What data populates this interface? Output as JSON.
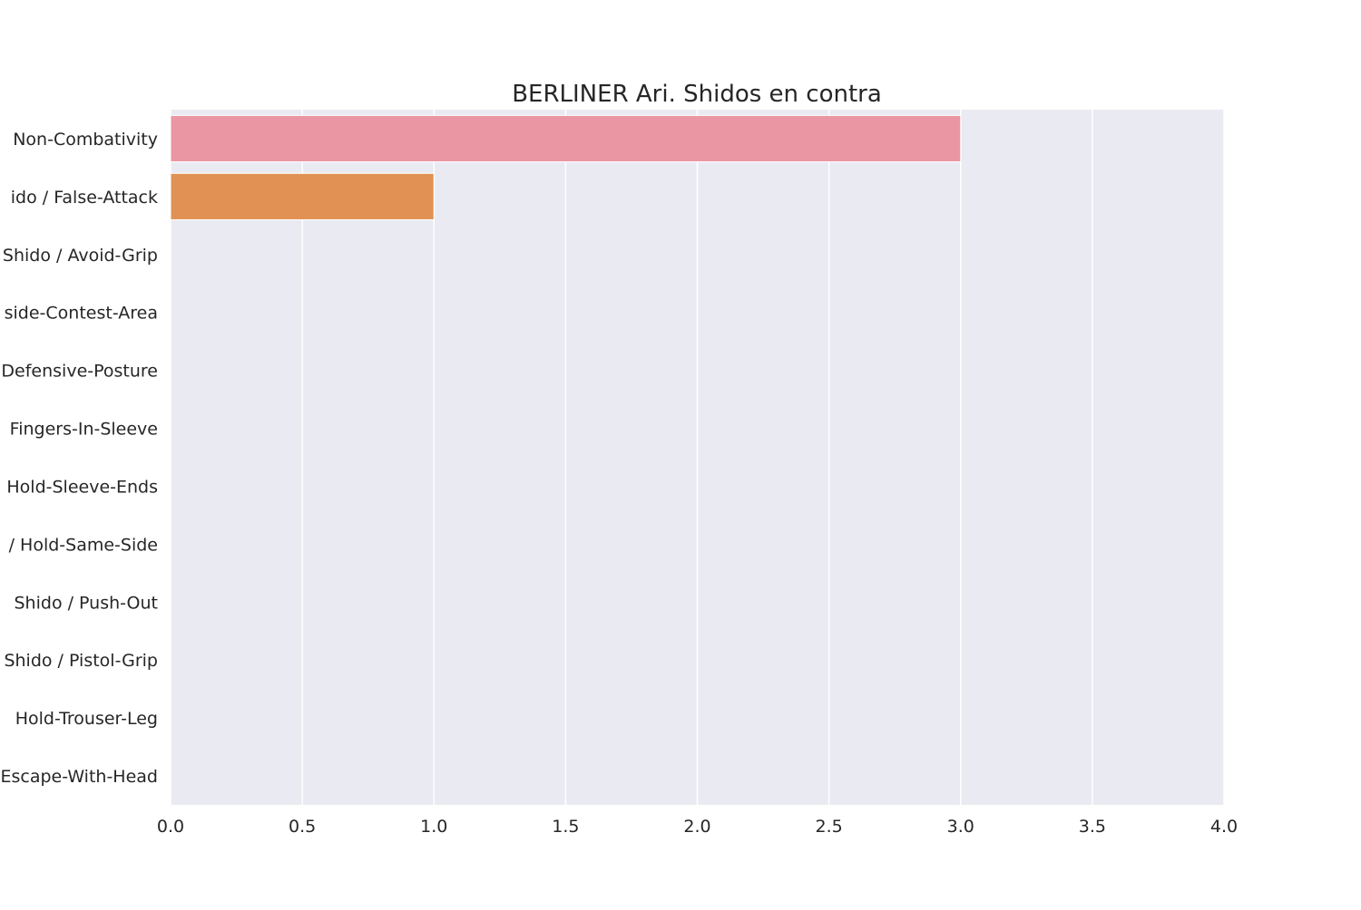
{
  "chart_data": {
    "type": "bar",
    "orientation": "horizontal",
    "title": "BERLINER Ari. Shidos en contra",
    "xlabel": "",
    "ylabel": "",
    "xlim": [
      0,
      4
    ],
    "x_ticks": [
      "0.0",
      "0.5",
      "1.0",
      "1.5",
      "2.0",
      "2.5",
      "3.0",
      "3.5",
      "4.0"
    ],
    "x_tick_values": [
      0,
      0.5,
      1,
      1.5,
      2,
      2.5,
      3,
      3.5,
      4
    ],
    "grid": true,
    "categories": [
      "Non-Combativity",
      "ido / False-Attack",
      "Shido / Avoid-Grip",
      "side-Contest-Area",
      "Defensive-Posture",
      "Fingers-In-Sleeve",
      "Hold-Sleeve-Ends",
      "/ Hold-Same-Side",
      "Shido / Push-Out",
      "Shido / Pistol-Grip",
      "Hold-Trouser-Leg",
      "Escape-With-Head"
    ],
    "values": [
      3,
      1,
      0,
      0,
      0,
      0,
      0,
      0,
      0,
      0,
      0,
      0
    ],
    "colors": [
      "#ea96a3",
      "#e19153",
      "#c6a44a",
      "#a5ab49",
      "#6fb049",
      "#52b07f",
      "#54ad9e",
      "#56aab4",
      "#5aa5cb",
      "#8899e9",
      "#c38ae9",
      "#e584d6"
    ],
    "background": "#eaeaf2",
    "grid_color": "#ffffff"
  }
}
